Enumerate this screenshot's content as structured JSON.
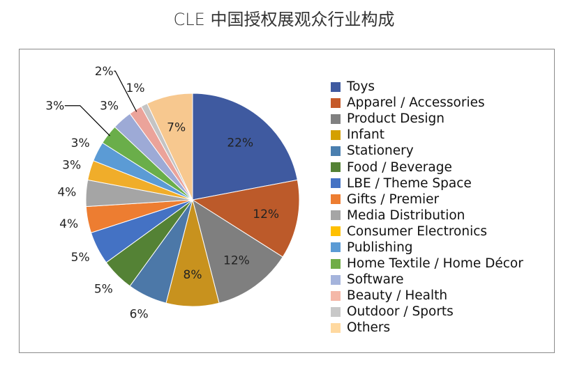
{
  "chart_data": {
    "type": "pie",
    "title": "CLE 中国授权展观众行业构成",
    "categories": [
      "Toys",
      "Apparel / Accessories",
      "Product Design",
      "Infant",
      "Stationery",
      "Food / Beverage",
      "LBE / Theme Space",
      "Gifts / Premier",
      "Media Distribution",
      "Consumer Electronics",
      "Publishing",
      "Home Textile / Home Décor",
      "Software",
      "Beauty / Health",
      "Outdoor / Sports",
      "Others"
    ],
    "values": [
      22,
      12,
      12,
      8,
      6,
      5,
      5,
      4,
      4,
      3,
      3,
      3,
      3,
      2,
      1,
      7
    ],
    "data_labels": [
      "22%",
      "12%",
      "12%",
      "8%",
      "6%",
      "5%",
      "5%",
      "4%",
      "4%",
      "3%",
      "3%",
      "3%",
      "3%",
      "2%",
      "1%",
      "7%"
    ],
    "colors": [
      "#3F5AA0",
      "#BC5A2A",
      "#7F7F7F",
      "#C8921E",
      "#4C78A8",
      "#548235",
      "#4472C4",
      "#ED7D31",
      "#A5A5A5",
      "#F0AD2A",
      "#5B9BD5",
      "#6AAE4A",
      "#9DAAD6",
      "#EBA39A",
      "#C4C4C4",
      "#F7C88F"
    ],
    "legend_colors": [
      "#3F5AA0",
      "#C55A2A",
      "#808080",
      "#D4A000",
      "#4A7FAF",
      "#548235",
      "#4472C4",
      "#ED7D31",
      "#A5A5A5",
      "#FFC000",
      "#5B9BD5",
      "#70AD47",
      "#A5B4DC",
      "#F4B8A8",
      "#C8C8C8",
      "#FFD9A0"
    ],
    "legend_position": "right",
    "start": "top, clockwise"
  }
}
